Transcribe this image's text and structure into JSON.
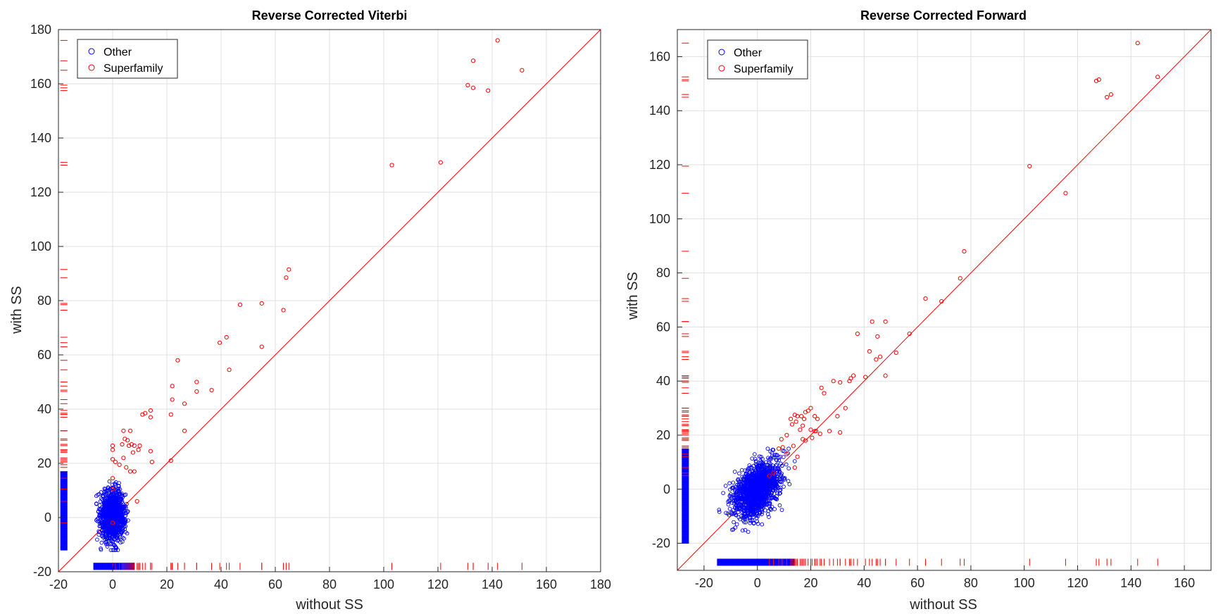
{
  "colors": {
    "other": "#0000ff",
    "superfamily": "#ff0000",
    "grid": "#e0e0e0",
    "axis": "#262626",
    "background": "#ffffff"
  },
  "legend": {
    "placement": "top-left"
  },
  "chart_data": [
    {
      "type": "scatter",
      "title": "Reverse Corrected Viterbi",
      "xlabel": "without SS",
      "ylabel": "with SS",
      "xlim": [
        -20,
        180
      ],
      "ylim": [
        -20,
        180
      ],
      "xticks": [
        -20,
        0,
        20,
        40,
        60,
        80,
        100,
        120,
        140,
        160,
        180
      ],
      "yticks": [
        -20,
        0,
        20,
        40,
        60,
        80,
        100,
        120,
        140,
        160,
        180
      ],
      "grid": true,
      "diagonal": {
        "from": [
          -20,
          -20
        ],
        "to": [
          180,
          180
        ],
        "color": "#ff0000"
      },
      "other_cloud": {
        "n": 1200,
        "x_mean": 0,
        "x_sd": 2.2,
        "x_range": [
          -6,
          8
        ],
        "y_mean": 1,
        "y_sd": 4.5,
        "y_range": [
          -12,
          17
        ]
      },
      "rug_other": {
        "x_range": [
          -7,
          8
        ],
        "y_range": [
          -12,
          17
        ]
      },
      "rug_positions": {
        "x_at": -18,
        "y_at": -18
      },
      "series": [
        {
          "name": "Superfamily",
          "points": [
            [
              142,
              176
            ],
            [
              133,
              168.5
            ],
            [
              131,
              159.5
            ],
            [
              133,
              158.5
            ],
            [
              138.5,
              157.5
            ],
            [
              151,
              165
            ],
            [
              103,
              130
            ],
            [
              121,
              131
            ],
            [
              65,
              91.5
            ],
            [
              64,
              88.5
            ],
            [
              63,
              76.5
            ],
            [
              55,
              79
            ],
            [
              47,
              78.5
            ],
            [
              55,
              63
            ],
            [
              42,
              66.5
            ],
            [
              39.5,
              64.5
            ],
            [
              43,
              54.5
            ],
            [
              36.5,
              47
            ],
            [
              31,
              50
            ],
            [
              31,
              46.5
            ],
            [
              24,
              58
            ],
            [
              22,
              48.5
            ],
            [
              22,
              43.5
            ],
            [
              26.5,
              42
            ],
            [
              21.5,
              38
            ],
            [
              26.5,
              32
            ],
            [
              14,
              39.5
            ],
            [
              11,
              38
            ],
            [
              12,
              38.5
            ],
            [
              14,
              37
            ],
            [
              21.5,
              21
            ],
            [
              14,
              24.5
            ],
            [
              14.5,
              20.5
            ],
            [
              10,
              26.5
            ],
            [
              9.5,
              25
            ],
            [
              8,
              26.5
            ],
            [
              7,
              27
            ],
            [
              7.5,
              24
            ],
            [
              4,
              32
            ],
            [
              6.5,
              32
            ],
            [
              4.5,
              29
            ],
            [
              5.5,
              28.5
            ],
            [
              3.5,
              27
            ],
            [
              6,
              26.5
            ],
            [
              0,
              26.5
            ],
            [
              0,
              25
            ],
            [
              4,
              22
            ],
            [
              0,
              21.5
            ],
            [
              1,
              20.5
            ],
            [
              2.5,
              19.5
            ],
            [
              5,
              18.5
            ],
            [
              8,
              17
            ],
            [
              6.5,
              17
            ],
            [
              0,
              14.5
            ],
            [
              0,
              10.5
            ],
            [
              9,
              6
            ],
            [
              0,
              -2
            ]
          ]
        }
      ]
    },
    {
      "type": "scatter",
      "title": "Reverse Corrected Forward",
      "xlabel": "without SS",
      "ylabel": "with SS",
      "xlim": [
        -30,
        170
      ],
      "ylim": [
        -30,
        170
      ],
      "xticks": [
        -20,
        0,
        20,
        40,
        60,
        80,
        100,
        120,
        140,
        160
      ],
      "yticks": [
        -20,
        0,
        20,
        40,
        60,
        80,
        100,
        120,
        140,
        160
      ],
      "grid": true,
      "diagonal": {
        "from": [
          -30,
          -30
        ],
        "to": [
          170,
          170
        ],
        "color": "#ff0000"
      },
      "other_cloud": {
        "n": 1500,
        "x_mean": 0,
        "x_sd": 4.2,
        "x_range": [
          -15,
          14
        ],
        "y_mean": 0,
        "y_sd": 4.5,
        "y_range": [
          -20,
          15
        ]
      },
      "rug_other": {
        "x_range": [
          -15,
          14
        ],
        "y_range": [
          -20,
          15
        ]
      },
      "rug_positions": {
        "x_at": -27,
        "y_at": -27
      },
      "series": [
        {
          "name": "Superfamily",
          "points": [
            [
              142.5,
              165
            ],
            [
              150,
              152.5
            ],
            [
              128,
              151.5
            ],
            [
              127,
              151
            ],
            [
              131,
              145
            ],
            [
              132.5,
              146
            ],
            [
              102,
              119.5
            ],
            [
              115.5,
              109.5
            ],
            [
              77.5,
              88
            ],
            [
              76,
              78
            ],
            [
              63,
              70.5
            ],
            [
              69,
              69.5
            ],
            [
              57,
              57.5
            ],
            [
              52,
              50.5
            ],
            [
              48,
              42
            ],
            [
              46,
              49
            ],
            [
              48,
              62
            ],
            [
              43,
              62
            ],
            [
              42,
              51
            ],
            [
              40.5,
              41.5
            ],
            [
              44.5,
              48
            ],
            [
              45,
              56.5
            ],
            [
              37.5,
              57.5
            ],
            [
              36,
              42
            ],
            [
              34.5,
              40
            ],
            [
              35,
              41
            ],
            [
              33,
              30
            ],
            [
              31,
              39.5
            ],
            [
              30,
              27
            ],
            [
              28.5,
              40
            ],
            [
              31,
              21
            ],
            [
              27,
              21.5
            ],
            [
              24,
              37.5
            ],
            [
              25,
              35.5
            ],
            [
              23.5,
              20.5
            ],
            [
              21.5,
              21.5
            ],
            [
              20,
              22
            ],
            [
              20.5,
              19
            ],
            [
              22,
              21.5
            ],
            [
              22.5,
              26
            ],
            [
              21.5,
              27
            ],
            [
              20,
              30
            ],
            [
              19,
              29
            ],
            [
              18,
              28.5
            ],
            [
              17.5,
              26
            ],
            [
              16.5,
              27
            ],
            [
              15,
              27
            ],
            [
              14,
              27.5
            ],
            [
              14.5,
              25
            ],
            [
              17,
              23.5
            ],
            [
              13,
              24
            ],
            [
              12.5,
              26
            ],
            [
              16,
              22
            ],
            [
              18,
              18
            ],
            [
              17,
              18.5
            ],
            [
              11,
              20
            ],
            [
              9,
              18.5
            ],
            [
              13.5,
              16
            ],
            [
              15,
              12
            ],
            [
              14,
              8
            ],
            [
              9.5,
              15.5
            ],
            [
              11,
              13
            ],
            [
              8,
              15
            ],
            [
              4.5,
              5
            ],
            [
              6,
              6
            ]
          ]
        }
      ]
    }
  ],
  "legend_entries": [
    "Other",
    "Superfamily"
  ]
}
